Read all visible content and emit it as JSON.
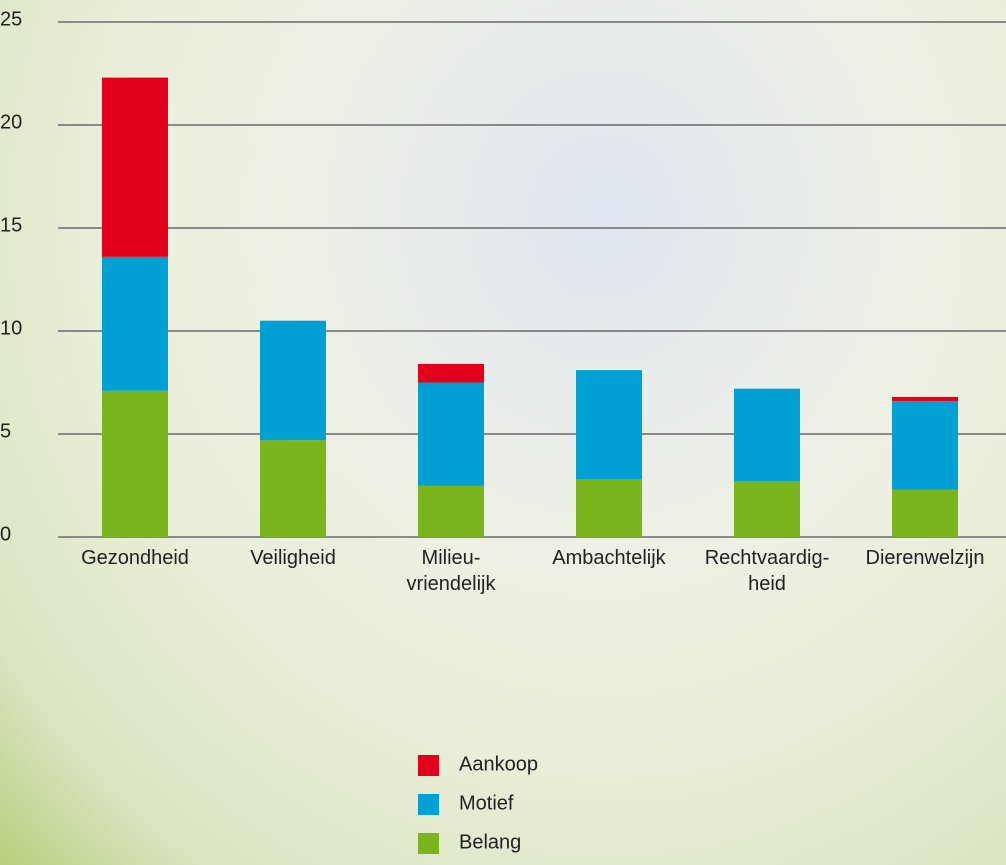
{
  "chart_data": {
    "type": "bar",
    "stacked": true,
    "categories": [
      "Gezondheid",
      "Veiligheid",
      "Milieu-\nvriendelijk",
      "Ambachtelijk",
      "Rechtvaardig-\nheid",
      "Dierenwelzijn"
    ],
    "series": [
      {
        "name": "Belang",
        "color": "#7ab51d",
        "values": [
          7.1,
          4.7,
          2.5,
          2.8,
          2.7,
          2.3
        ]
      },
      {
        "name": "Motief",
        "color": "#009fd4",
        "values": [
          6.5,
          5.8,
          5.0,
          5.3,
          4.5,
          4.3
        ]
      },
      {
        "name": "Aankoop",
        "color": "#e2001a",
        "values": [
          8.7,
          0,
          0.9,
          0,
          0,
          0.2
        ]
      }
    ],
    "ylim": [
      0,
      25
    ],
    "yticks": [
      0,
      5,
      10,
      15,
      20,
      25
    ],
    "grid": true
  }
}
